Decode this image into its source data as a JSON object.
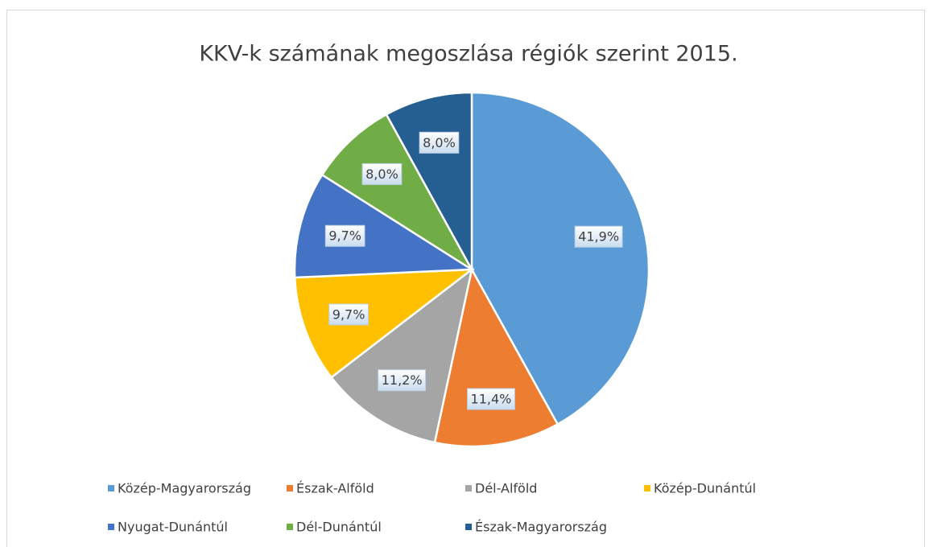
{
  "chart_data": {
    "type": "pie",
    "title": "KKV-k számának megoszlása régiók szerint 2015.",
    "categories": [
      "Közép-Magyarország",
      "Észak-Alföld",
      "Dél-Alföld",
      "Közép-Dunántúl",
      "Nyugat-Dunántúl",
      "Dél-Dunántúl",
      "Észak-Magyarország"
    ],
    "values": [
      41.9,
      11.4,
      11.2,
      9.7,
      9.7,
      8.0,
      8.0
    ],
    "value_labels": [
      "41,9%",
      "11,4%",
      "11,2%",
      "9,7%",
      "9,7%",
      "8,0%",
      "8,0%"
    ],
    "colors": [
      "#5b9bd5",
      "#ed7d31",
      "#a5a5a5",
      "#ffc000",
      "#4472c4",
      "#70ad47",
      "#255e91"
    ],
    "legend": "bottom"
  }
}
